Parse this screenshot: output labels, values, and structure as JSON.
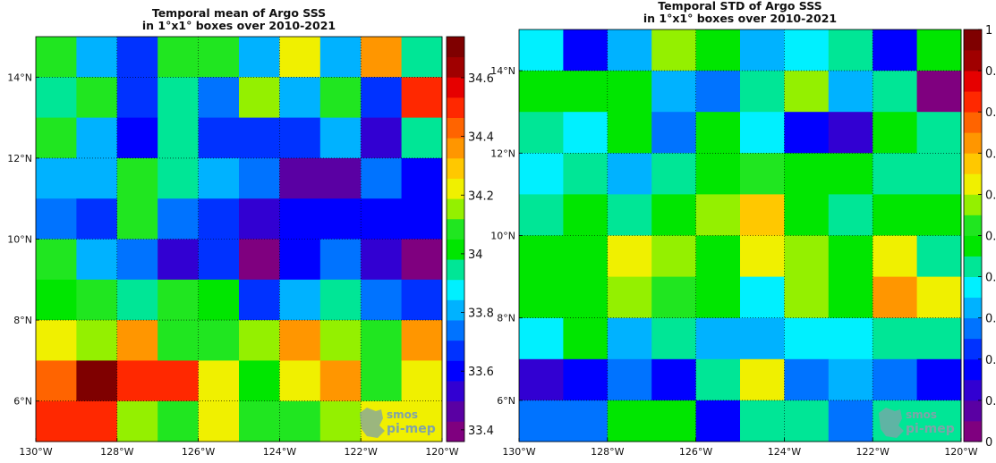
{
  "palette": [
    "#7f007f",
    "#5a00a3",
    "#3200d2",
    "#0000ff",
    "#0032ff",
    "#0073ff",
    "#00b2ff",
    "#00f0ff",
    "#00e696",
    "#00e600",
    "#20e620",
    "#94f000",
    "#f0f000",
    "#ffc800",
    "#ff9600",
    "#ff6400",
    "#ff2800",
    "#e60000",
    "#a00000",
    "#7f0000"
  ],
  "logo": {
    "line1": "smos",
    "line2": "pi-mep",
    "color": "#7fa3a8"
  },
  "chart_data": [
    {
      "type": "heatmap",
      "title": "Temporal mean of Argo SSS",
      "subtitle": "in 1°x1° boxes over 2010-2021",
      "x_ticks": [
        "130°W",
        "128°W",
        "126°W",
        "124°W",
        "122°W",
        "120°W"
      ],
      "y_ticks": [
        "6°N",
        "8°N",
        "10°N",
        "12°N",
        "14°N"
      ],
      "x_range": [
        -130,
        -120
      ],
      "y_range": [
        5,
        15
      ],
      "grid": true,
      "colorbar": {
        "range": [
          33.36,
          34.74
        ],
        "ticks": [
          {
            "value": 34.6,
            "label": "34.6"
          },
          {
            "value": 34.4,
            "label": "34.4"
          },
          {
            "value": 34.2,
            "label": "34.2"
          },
          {
            "value": 34.0,
            "label": "34"
          },
          {
            "value": 33.8,
            "label": "33.8"
          },
          {
            "value": 33.6,
            "label": "33.6"
          },
          {
            "value": 33.4,
            "label": "33.4"
          }
        ]
      },
      "grid_values_rows_north_to_south": [
        [
          34.07,
          33.84,
          33.7,
          34.07,
          34.07,
          33.84,
          34.25,
          33.84,
          34.35,
          33.94
        ],
        [
          33.94,
          34.07,
          33.7,
          33.94,
          33.77,
          34.17,
          33.84,
          34.07,
          33.7,
          34.49
        ],
        [
          34.07,
          33.84,
          33.63,
          33.94,
          33.7,
          33.7,
          33.7,
          33.84,
          33.56,
          33.94
        ],
        [
          33.84,
          33.84,
          34.07,
          33.94,
          33.84,
          33.77,
          33.49,
          33.49,
          33.77,
          33.63
        ],
        [
          33.77,
          33.7,
          34.07,
          33.77,
          33.7,
          33.56,
          33.63,
          33.63,
          33.63,
          33.63
        ],
        [
          34.07,
          33.84,
          33.77,
          33.56,
          33.7,
          33.42,
          33.63,
          33.77,
          33.56,
          33.42
        ],
        [
          34.0,
          34.07,
          33.94,
          34.07,
          34.0,
          33.7,
          33.84,
          33.94,
          33.77,
          33.7
        ],
        [
          34.25,
          34.17,
          34.35,
          34.07,
          34.07,
          34.17,
          34.35,
          34.17,
          34.07,
          34.35
        ],
        [
          34.42,
          34.7,
          34.49,
          34.49,
          34.25,
          34.0,
          34.25,
          34.35,
          34.07,
          34.25
        ],
        [
          34.49,
          34.49,
          34.17,
          34.07,
          34.25,
          34.07,
          34.07,
          34.17,
          34.25,
          34.25
        ]
      ]
    },
    {
      "type": "heatmap",
      "title": "Temporal STD of Argo SSS",
      "subtitle": "in 1°x1° boxes over 2010-2021",
      "x_ticks": [
        "130°W",
        "128°W",
        "126°W",
        "124°W",
        "122°W",
        "120°W"
      ],
      "y_ticks": [
        "6°N",
        "8°N",
        "10°N",
        "12°N",
        "14°N"
      ],
      "x_range": [
        -130,
        -120
      ],
      "y_range": [
        5,
        15
      ],
      "grid": true,
      "colorbar": {
        "range": [
          0,
          1
        ],
        "ticks": [
          {
            "value": 1.0,
            "label": "1"
          },
          {
            "value": 0.9,
            "label": "0."
          },
          {
            "value": 0.8,
            "label": "0."
          },
          {
            "value": 0.7,
            "label": "0."
          },
          {
            "value": 0.6,
            "label": "0."
          },
          {
            "value": 0.5,
            "label": "0."
          },
          {
            "value": 0.4,
            "label": "0."
          },
          {
            "value": 0.3,
            "label": "0."
          },
          {
            "value": 0.2,
            "label": "0."
          },
          {
            "value": 0.1,
            "label": "0."
          },
          {
            "value": 0.0,
            "label": "0"
          }
        ]
      },
      "grid_values_rows_north_to_south": [
        [
          0.375,
          0.175,
          0.325,
          0.575,
          0.475,
          0.325,
          0.375,
          0.425,
          0.175,
          0.475
        ],
        [
          0.475,
          0.475,
          0.475,
          0.325,
          0.275,
          0.425,
          0.575,
          0.325,
          0.425,
          0.025
        ],
        [
          0.425,
          0.375,
          0.475,
          0.275,
          0.475,
          0.375,
          0.175,
          0.125,
          0.475,
          0.425
        ],
        [
          0.375,
          0.425,
          0.325,
          0.425,
          0.475,
          0.525,
          0.475,
          0.475,
          0.425,
          0.425
        ],
        [
          0.425,
          0.475,
          0.425,
          0.475,
          0.575,
          0.675,
          0.475,
          0.425,
          0.475,
          0.475
        ],
        [
          0.475,
          0.475,
          0.625,
          0.575,
          0.475,
          0.625,
          0.575,
          0.475,
          0.625,
          0.425
        ],
        [
          0.475,
          0.475,
          0.575,
          0.525,
          0.475,
          0.375,
          0.575,
          0.475,
          0.725,
          0.625
        ],
        [
          0.375,
          0.475,
          0.325,
          0.425,
          0.325,
          0.325,
          0.375,
          0.375,
          0.425,
          0.425
        ],
        [
          0.125,
          0.175,
          0.275,
          0.175,
          0.425,
          0.625,
          0.275,
          0.325,
          0.275,
          0.175
        ],
        [
          0.275,
          0.275,
          0.475,
          0.475,
          0.175,
          0.425,
          0.425,
          0.275,
          0.425,
          0.425
        ]
      ]
    }
  ]
}
